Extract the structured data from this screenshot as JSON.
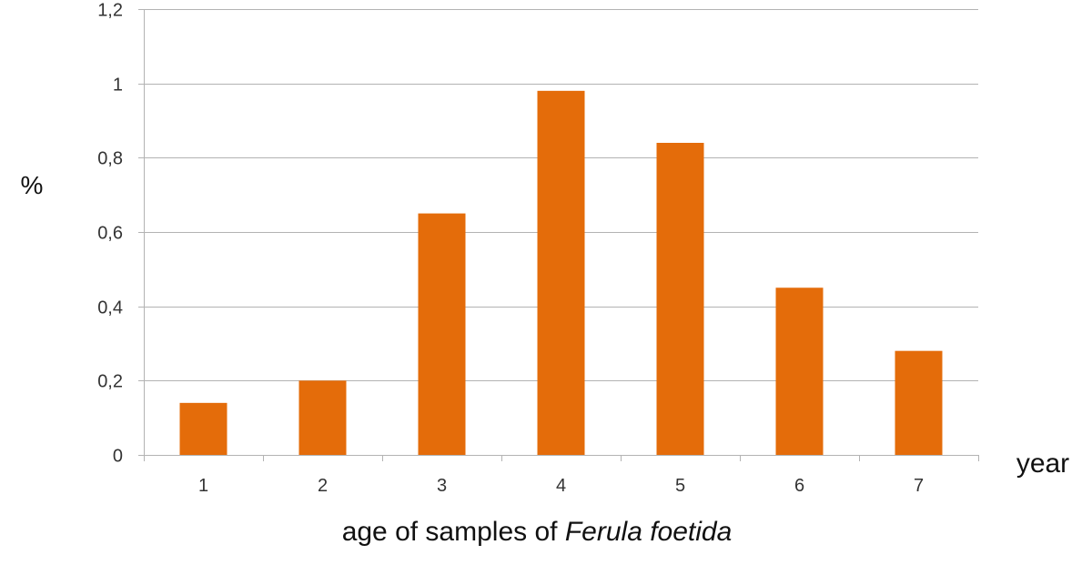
{
  "chart_data": {
    "type": "bar",
    "categories": [
      "1",
      "2",
      "3",
      "4",
      "5",
      "6",
      "7"
    ],
    "values": [
      0.14,
      0.2,
      0.65,
      0.98,
      0.84,
      0.45,
      0.28
    ],
    "ylim": [
      0,
      1.2
    ],
    "yticks": [
      0,
      0.2,
      0.4,
      0.6,
      0.8,
      1,
      1.2
    ],
    "ytick_labels": [
      "0",
      "0,2",
      "0,4",
      "0,6",
      "0,8",
      "1",
      "1,2"
    ],
    "ylabel": "%",
    "xunit_label": "year",
    "xlabel_prefix": "age of samples of ",
    "xlabel_species": "Ferula foetida",
    "grid": true,
    "legend": "none",
    "bar_color": "#E46C0A",
    "grid_color": "#B3B3B3"
  }
}
